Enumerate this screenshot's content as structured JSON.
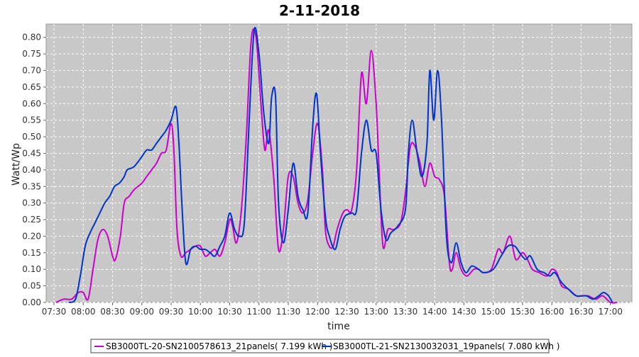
{
  "chart_data": {
    "type": "line",
    "title": "2-11-2018",
    "xlabel": "time",
    "ylabel": "Watt/Wp",
    "x_ticks": [
      "07:30",
      "08:00",
      "08:30",
      "09:00",
      "09:30",
      "10:00",
      "10:30",
      "11:00",
      "11:30",
      "12:00",
      "12:30",
      "13:00",
      "13:30",
      "14:00",
      "14:30",
      "15:00",
      "15:30",
      "16:00",
      "16:30",
      "17:00"
    ],
    "y_ticks": [
      "0.00",
      "0.05",
      "0.10",
      "0.15",
      "0.20",
      "0.25",
      "0.30",
      "0.35",
      "0.40",
      "0.45",
      "0.50",
      "0.55",
      "0.60",
      "0.65",
      "0.70",
      "0.75",
      "0.80"
    ],
    "xlim": [
      "07:22",
      "17:22"
    ],
    "ylim": [
      0,
      0.84
    ],
    "grid": true,
    "legend_position": "bottom",
    "series": [
      {
        "name": "SB3000TL-20-SN2100578613_21panels( 7.199 kWh )",
        "color": "#cc00cc",
        "points": [
          [
            "07:32",
            0.0
          ],
          [
            "07:40",
            0.01
          ],
          [
            "07:48",
            0.01
          ],
          [
            "07:55",
            0.03
          ],
          [
            "08:00",
            0.03
          ],
          [
            "08:05",
            0.01
          ],
          [
            "08:10",
            0.1
          ],
          [
            "08:15",
            0.19
          ],
          [
            "08:20",
            0.22
          ],
          [
            "08:25",
            0.2
          ],
          [
            "08:30",
            0.14
          ],
          [
            "08:33",
            0.13
          ],
          [
            "08:38",
            0.2
          ],
          [
            "08:42",
            0.3
          ],
          [
            "08:47",
            0.32
          ],
          [
            "08:52",
            0.34
          ],
          [
            "09:00",
            0.36
          ],
          [
            "09:05",
            0.38
          ],
          [
            "09:10",
            0.4
          ],
          [
            "09:15",
            0.42
          ],
          [
            "09:20",
            0.45
          ],
          [
            "09:25",
            0.46
          ],
          [
            "09:30",
            0.54
          ],
          [
            "09:33",
            0.45
          ],
          [
            "09:36",
            0.22
          ],
          [
            "09:40",
            0.14
          ],
          [
            "09:45",
            0.15
          ],
          [
            "09:50",
            0.16
          ],
          [
            "09:55",
            0.17
          ],
          [
            "10:00",
            0.17
          ],
          [
            "10:05",
            0.14
          ],
          [
            "10:10",
            0.15
          ],
          [
            "10:15",
            0.16
          ],
          [
            "10:20",
            0.14
          ],
          [
            "10:25",
            0.18
          ],
          [
            "10:30",
            0.25
          ],
          [
            "10:33",
            0.23
          ],
          [
            "10:37",
            0.18
          ],
          [
            "10:42",
            0.28
          ],
          [
            "10:47",
            0.5
          ],
          [
            "10:52",
            0.79
          ],
          [
            "10:57",
            0.8
          ],
          [
            "11:02",
            0.6
          ],
          [
            "11:06",
            0.46
          ],
          [
            "11:10",
            0.52
          ],
          [
            "11:15",
            0.38
          ],
          [
            "11:20",
            0.16
          ],
          [
            "11:25",
            0.22
          ],
          [
            "11:30",
            0.38
          ],
          [
            "11:35",
            0.38
          ],
          [
            "11:40",
            0.3
          ],
          [
            "11:45",
            0.27
          ],
          [
            "11:50",
            0.31
          ],
          [
            "11:55",
            0.45
          ],
          [
            "12:00",
            0.54
          ],
          [
            "12:05",
            0.4
          ],
          [
            "12:08",
            0.22
          ],
          [
            "12:12",
            0.17
          ],
          [
            "12:16",
            0.17
          ],
          [
            "12:20",
            0.22
          ],
          [
            "12:26",
            0.27
          ],
          [
            "12:30",
            0.28
          ],
          [
            "12:35",
            0.28
          ],
          [
            "12:40",
            0.4
          ],
          [
            "12:45",
            0.69
          ],
          [
            "12:50",
            0.6
          ],
          [
            "12:55",
            0.76
          ],
          [
            "13:00",
            0.6
          ],
          [
            "13:03",
            0.4
          ],
          [
            "13:07",
            0.17
          ],
          [
            "13:12",
            0.22
          ],
          [
            "13:18",
            0.22
          ],
          [
            "13:25",
            0.24
          ],
          [
            "13:30",
            0.33
          ],
          [
            "13:35",
            0.47
          ],
          [
            "13:40",
            0.47
          ],
          [
            "13:45",
            0.42
          ],
          [
            "13:50",
            0.35
          ],
          [
            "13:55",
            0.42
          ],
          [
            "14:00",
            0.38
          ],
          [
            "14:05",
            0.37
          ],
          [
            "14:10",
            0.32
          ],
          [
            "14:15",
            0.12
          ],
          [
            "14:18",
            0.1
          ],
          [
            "14:22",
            0.15
          ],
          [
            "14:27",
            0.1
          ],
          [
            "14:33",
            0.08
          ],
          [
            "14:40",
            0.1
          ],
          [
            "14:45",
            0.1
          ],
          [
            "14:50",
            0.09
          ],
          [
            "14:58",
            0.1
          ],
          [
            "15:05",
            0.16
          ],
          [
            "15:10",
            0.15
          ],
          [
            "15:17",
            0.2
          ],
          [
            "15:23",
            0.13
          ],
          [
            "15:30",
            0.15
          ],
          [
            "15:35",
            0.13
          ],
          [
            "15:40",
            0.1
          ],
          [
            "15:47",
            0.09
          ],
          [
            "15:55",
            0.08
          ],
          [
            "16:00",
            0.1
          ],
          [
            "16:05",
            0.09
          ],
          [
            "16:10",
            0.05
          ],
          [
            "16:17",
            0.04
          ],
          [
            "16:25",
            0.02
          ],
          [
            "16:30",
            0.02
          ],
          [
            "16:37",
            0.02
          ],
          [
            "16:45",
            0.01
          ],
          [
            "16:52",
            0.02
          ],
          [
            "17:00",
            0.0
          ],
          [
            "17:07",
            0.0
          ]
        ]
      },
      {
        "name": "SB3000TL-21-SN2130032031_19panels( 7.080 kWh )",
        "color": "#0033cc",
        "points": [
          [
            "07:45",
            0.0
          ],
          [
            "07:52",
            0.01
          ],
          [
            "07:57",
            0.08
          ],
          [
            "08:02",
            0.17
          ],
          [
            "08:07",
            0.21
          ],
          [
            "08:12",
            0.24
          ],
          [
            "08:17",
            0.27
          ],
          [
            "08:22",
            0.3
          ],
          [
            "08:27",
            0.32
          ],
          [
            "08:32",
            0.35
          ],
          [
            "08:37",
            0.36
          ],
          [
            "08:42",
            0.38
          ],
          [
            "08:45",
            0.4
          ],
          [
            "08:52",
            0.41
          ],
          [
            "09:00",
            0.44
          ],
          [
            "09:05",
            0.46
          ],
          [
            "09:10",
            0.46
          ],
          [
            "09:15",
            0.48
          ],
          [
            "09:20",
            0.5
          ],
          [
            "09:25",
            0.52
          ],
          [
            "09:30",
            0.55
          ],
          [
            "09:35",
            0.59
          ],
          [
            "09:38",
            0.48
          ],
          [
            "09:41",
            0.3
          ],
          [
            "09:45",
            0.12
          ],
          [
            "09:50",
            0.16
          ],
          [
            "09:55",
            0.17
          ],
          [
            "10:00",
            0.16
          ],
          [
            "10:05",
            0.16
          ],
          [
            "10:10",
            0.15
          ],
          [
            "10:15",
            0.14
          ],
          [
            "10:20",
            0.17
          ],
          [
            "10:25",
            0.2
          ],
          [
            "10:30",
            0.27
          ],
          [
            "10:35",
            0.22
          ],
          [
            "10:40",
            0.2
          ],
          [
            "10:45",
            0.24
          ],
          [
            "10:50",
            0.55
          ],
          [
            "10:55",
            0.82
          ],
          [
            "11:00",
            0.75
          ],
          [
            "11:05",
            0.57
          ],
          [
            "11:10",
            0.48
          ],
          [
            "11:13",
            0.62
          ],
          [
            "11:17",
            0.62
          ],
          [
            "11:20",
            0.3
          ],
          [
            "11:25",
            0.18
          ],
          [
            "11:30",
            0.28
          ],
          [
            "11:35",
            0.42
          ],
          [
            "11:40",
            0.32
          ],
          [
            "11:45",
            0.28
          ],
          [
            "11:50",
            0.27
          ],
          [
            "11:55",
            0.53
          ],
          [
            "11:59",
            0.63
          ],
          [
            "12:03",
            0.45
          ],
          [
            "12:08",
            0.26
          ],
          [
            "12:12",
            0.2
          ],
          [
            "12:18",
            0.16
          ],
          [
            "12:23",
            0.22
          ],
          [
            "12:28",
            0.26
          ],
          [
            "12:35",
            0.27
          ],
          [
            "12:40",
            0.28
          ],
          [
            "12:45",
            0.45
          ],
          [
            "12:50",
            0.55
          ],
          [
            "12:55",
            0.46
          ],
          [
            "13:00",
            0.45
          ],
          [
            "13:05",
            0.28
          ],
          [
            "13:10",
            0.19
          ],
          [
            "13:15",
            0.21
          ],
          [
            "13:22",
            0.23
          ],
          [
            "13:30",
            0.28
          ],
          [
            "13:33",
            0.45
          ],
          [
            "13:37",
            0.55
          ],
          [
            "13:42",
            0.45
          ],
          [
            "13:47",
            0.38
          ],
          [
            "13:52",
            0.48
          ],
          [
            "13:55",
            0.7
          ],
          [
            "13:59",
            0.55
          ],
          [
            "14:03",
            0.7
          ],
          [
            "14:07",
            0.55
          ],
          [
            "14:12",
            0.2
          ],
          [
            "14:17",
            0.12
          ],
          [
            "14:22",
            0.18
          ],
          [
            "14:27",
            0.12
          ],
          [
            "14:32",
            0.09
          ],
          [
            "14:38",
            0.11
          ],
          [
            "14:45",
            0.1
          ],
          [
            "14:50",
            0.09
          ],
          [
            "15:00",
            0.1
          ],
          [
            "15:08",
            0.14
          ],
          [
            "15:15",
            0.17
          ],
          [
            "15:22",
            0.17
          ],
          [
            "15:27",
            0.15
          ],
          [
            "15:33",
            0.13
          ],
          [
            "15:38",
            0.14
          ],
          [
            "15:45",
            0.1
          ],
          [
            "15:52",
            0.09
          ],
          [
            "15:58",
            0.08
          ],
          [
            "16:03",
            0.09
          ],
          [
            "16:10",
            0.06
          ],
          [
            "16:17",
            0.04
          ],
          [
            "16:25",
            0.02
          ],
          [
            "16:35",
            0.02
          ],
          [
            "16:42",
            0.01
          ],
          [
            "16:48",
            0.02
          ],
          [
            "16:53",
            0.03
          ],
          [
            "16:58",
            0.02
          ],
          [
            "17:02",
            0.0
          ]
        ]
      }
    ]
  }
}
